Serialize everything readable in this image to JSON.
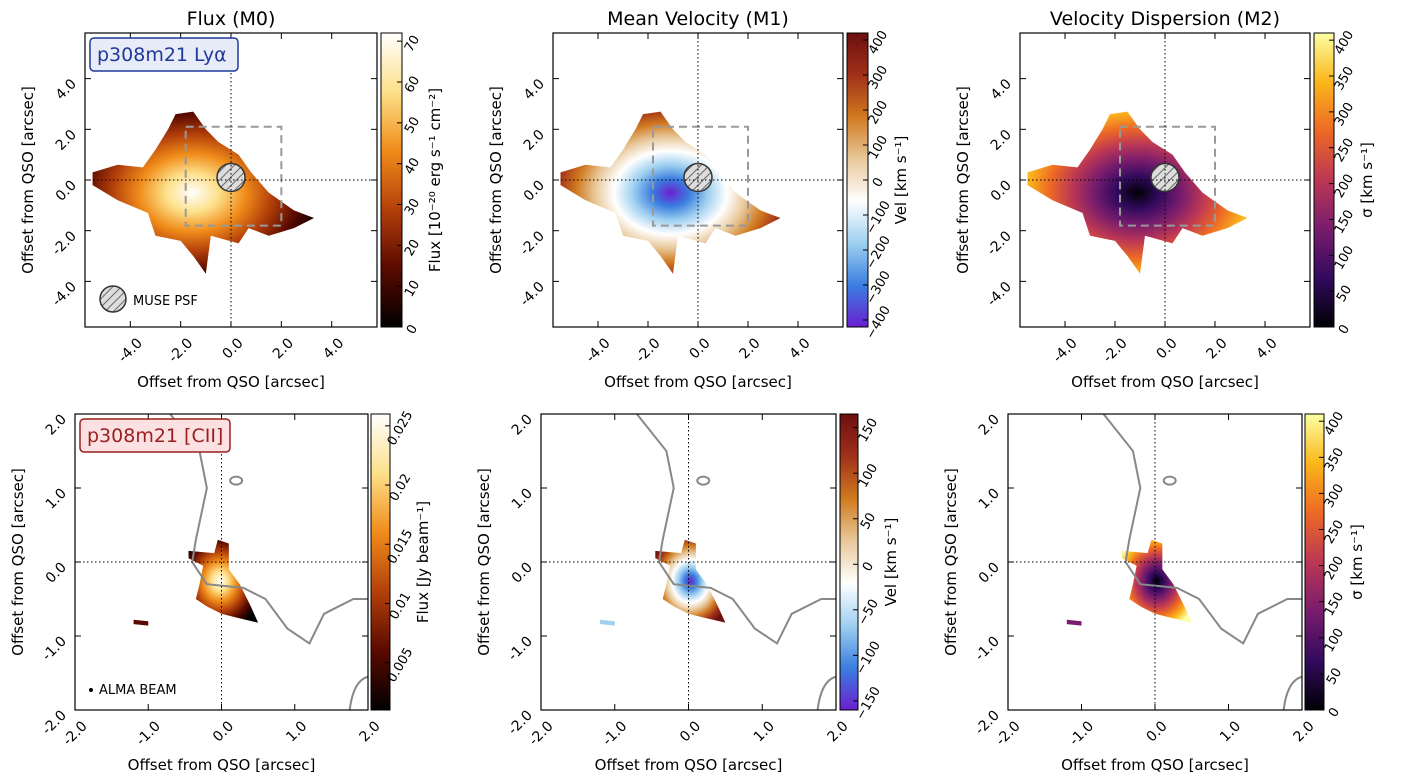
{
  "chart_data": [
    {
      "type": "heatmap",
      "title": "Flux (M0)",
      "xlabel": "Offset from QSO [arcsec]",
      "ylabel": "Offset from QSO [arcsec]",
      "xlim": [
        -5.8,
        5.8
      ],
      "ylim": [
        -5.8,
        5.8
      ],
      "xticks": [
        {
          "value": -4,
          "label": "-4.0"
        },
        {
          "value": -2,
          "label": "-2.0"
        },
        {
          "value": 0,
          "label": "0.0"
        },
        {
          "value": 2,
          "label": "2.0"
        },
        {
          "value": 4,
          "label": "4.0"
        }
      ],
      "yticks": [
        {
          "value": -4,
          "label": "-4.0"
        },
        {
          "value": -2,
          "label": "-2.0"
        },
        {
          "value": 0,
          "label": "0.0"
        },
        {
          "value": 2,
          "label": "2.0"
        },
        {
          "value": 4,
          "label": "4.0"
        }
      ],
      "colorbar": {
        "label": "Flux [10⁻²⁰ erg s⁻¹ cm⁻²]",
        "lim": [
          0,
          72
        ],
        "ticks": [
          0,
          10,
          20,
          30,
          40,
          50,
          60,
          70
        ],
        "colors": [
          "#000000",
          "#5a0a00",
          "#b3400a",
          "#f08c1a",
          "#fde08a",
          "#ffffff"
        ]
      },
      "annotations": [
        "p308m21 Lyα",
        "MUSE PSF"
      ]
    },
    {
      "type": "heatmap",
      "title": "Mean Velocity (M1)",
      "xlabel": "Offset from QSO [arcsec]",
      "ylabel": "Offset from QSO [arcsec]",
      "xlim": [
        -5.8,
        5.8
      ],
      "ylim": [
        -5.8,
        5.8
      ],
      "xticks": [
        {
          "value": -4,
          "label": "-4.0"
        },
        {
          "value": -2,
          "label": "-2.0"
        },
        {
          "value": 0,
          "label": "0.0"
        },
        {
          "value": 2,
          "label": "2.0"
        },
        {
          "value": 4,
          "label": "4.0"
        }
      ],
      "yticks": [
        {
          "value": -4,
          "label": "-4.0"
        },
        {
          "value": -2,
          "label": "-2.0"
        },
        {
          "value": 0,
          "label": "0.0"
        },
        {
          "value": 2,
          "label": "2.0"
        },
        {
          "value": 4,
          "label": "4.0"
        }
      ],
      "colorbar": {
        "label": "Vel [km s⁻¹]",
        "lim": [
          -420,
          420
        ],
        "ticks": [
          {
            "value": -400,
            "label": "−400"
          },
          {
            "value": -300,
            "label": "−300"
          },
          {
            "value": -200,
            "label": "−200"
          },
          {
            "value": -100,
            "label": "−100"
          },
          0,
          100,
          200,
          300,
          400
        ],
        "colors": [
          "#6a1fd0",
          "#3a7fe0",
          "#9fd0f0",
          "#ffffff",
          "#e8c89a",
          "#d07a20",
          "#a0301a",
          "#6b1010"
        ]
      },
      "annotations": []
    },
    {
      "type": "heatmap",
      "title": "Velocity Dispersion (M2)",
      "xlabel": "Offset from QSO [arcsec]",
      "ylabel": "Offset from QSO [arcsec]",
      "xlim": [
        -5.8,
        5.8
      ],
      "ylim": [
        -5.8,
        5.8
      ],
      "xticks": [
        {
          "value": -4,
          "label": "-4.0"
        },
        {
          "value": -2,
          "label": "-2.0"
        },
        {
          "value": 0,
          "label": "0.0"
        },
        {
          "value": 2,
          "label": "2.0"
        },
        {
          "value": 4,
          "label": "4.0"
        }
      ],
      "yticks": [
        {
          "value": -4,
          "label": "-4.0"
        },
        {
          "value": -2,
          "label": "-2.0"
        },
        {
          "value": 0,
          "label": "0.0"
        },
        {
          "value": 2,
          "label": "2.0"
        },
        {
          "value": 4,
          "label": "4.0"
        }
      ],
      "colorbar": {
        "label": "σ [km s⁻¹]",
        "lim": [
          0,
          410
        ],
        "ticks": [
          0,
          50,
          100,
          150,
          200,
          250,
          300,
          350,
          400
        ],
        "colors": [
          "#000004",
          "#320a5e",
          "#781c6d",
          "#bc3754",
          "#ed6925",
          "#fbb61a",
          "#fcffa4"
        ]
      },
      "annotations": []
    },
    {
      "type": "heatmap",
      "xlabel": "Offset from QSO [arcsec]",
      "ylabel": "Offset from QSO [arcsec]",
      "xlim": [
        -2,
        2
      ],
      "ylim": [
        -2,
        2
      ],
      "xticks": [
        {
          "value": -2,
          "label": "-2.0"
        },
        {
          "value": -1,
          "label": "-1.0"
        },
        {
          "value": 0,
          "label": "0.0"
        },
        {
          "value": 1,
          "label": "1.0"
        },
        {
          "value": 2,
          "label": "2.0"
        }
      ],
      "yticks": [
        {
          "value": -2,
          "label": "-2.0"
        },
        {
          "value": -1,
          "label": "-1.0"
        },
        {
          "value": 0,
          "label": "0.0"
        },
        {
          "value": 1,
          "label": "1.0"
        },
        {
          "value": 2,
          "label": "2.0"
        }
      ],
      "colorbar": {
        "label": "Flux [Jy beam⁻¹]",
        "lim": [
          0.001,
          0.026
        ],
        "ticks": [
          0.005,
          0.01,
          0.015,
          0.02,
          0.025
        ],
        "colors": [
          "#000000",
          "#5a0a00",
          "#b3400a",
          "#f08c1a",
          "#fde08a",
          "#ffffff"
        ]
      },
      "annotations": [
        "p308m21 [CII]",
        "ALMA BEAM"
      ]
    },
    {
      "type": "heatmap",
      "xlabel": "Offset from QSO [arcsec]",
      "ylabel": "Offset from QSO [arcsec]",
      "xlim": [
        -2,
        2
      ],
      "ylim": [
        -2,
        2
      ],
      "xticks": [
        {
          "value": -2,
          "label": "-2.0"
        },
        {
          "value": -1,
          "label": "-1.0"
        },
        {
          "value": 0,
          "label": "0.0"
        },
        {
          "value": 1,
          "label": "1.0"
        },
        {
          "value": 2,
          "label": "2.0"
        }
      ],
      "yticks": [
        {
          "value": -2,
          "label": "-2.0"
        },
        {
          "value": -1,
          "label": "-1.0"
        },
        {
          "value": 0,
          "label": "0.0"
        },
        {
          "value": 1,
          "label": "1.0"
        },
        {
          "value": 2,
          "label": "2.0"
        }
      ],
      "colorbar": {
        "label": "Vel [km s⁻¹]",
        "lim": [
          -160,
          165
        ],
        "ticks": [
          {
            "value": -150,
            "label": "−150"
          },
          {
            "value": -100,
            "label": "−100"
          },
          {
            "value": -50,
            "label": "−50"
          },
          0,
          50,
          100,
          150
        ],
        "colors": [
          "#6a1fd0",
          "#3a7fe0",
          "#9fd0f0",
          "#ffffff",
          "#e8c89a",
          "#d07a20",
          "#a0301a",
          "#6b1010"
        ]
      },
      "annotations": []
    },
    {
      "type": "heatmap",
      "xlabel": "Offset from QSO [arcsec]",
      "ylabel": "Offset from QSO [arcsec]",
      "xlim": [
        -2,
        2
      ],
      "ylim": [
        -2,
        2
      ],
      "xticks": [
        {
          "value": -2,
          "label": "-2.0"
        },
        {
          "value": -1,
          "label": "-1.0"
        },
        {
          "value": 0,
          "label": "0.0"
        },
        {
          "value": 1,
          "label": "1.0"
        },
        {
          "value": 2,
          "label": "2.0"
        }
      ],
      "yticks": [
        {
          "value": -2,
          "label": "-2.0"
        },
        {
          "value": -1,
          "label": "-1.0"
        },
        {
          "value": 0,
          "label": "0.0"
        },
        {
          "value": 1,
          "label": "1.0"
        },
        {
          "value": 2,
          "label": "2.0"
        }
      ],
      "colorbar": {
        "label": "σ [km s⁻¹]",
        "lim": [
          0,
          410
        ],
        "ticks": [
          0,
          50,
          100,
          150,
          200,
          250,
          300,
          350,
          400
        ],
        "colors": [
          "#000004",
          "#320a5e",
          "#781c6d",
          "#bc3754",
          "#ed6925",
          "#fbb61a",
          "#fcffa4"
        ]
      },
      "annotations": []
    }
  ]
}
